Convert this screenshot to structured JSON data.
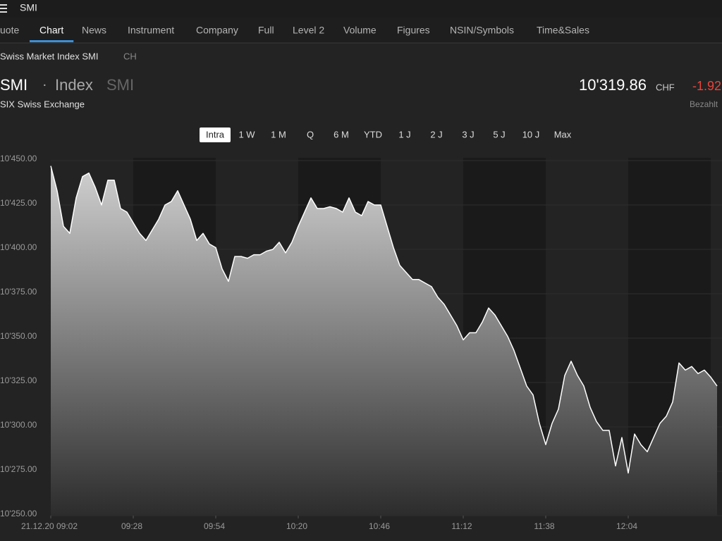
{
  "header": {
    "title": "SMI"
  },
  "tabs": {
    "items": [
      "uote",
      "Chart",
      "News",
      "Instrument",
      "Company",
      "Full",
      "Level 2",
      "Volume",
      "Figures",
      "NSIN/Symbols",
      "Time&Sales"
    ],
    "active": 1
  },
  "instrument": {
    "name": "Swiss Market Index SMI",
    "country": "CH",
    "symbol": "SMI",
    "separator": "·",
    "kind": "Index",
    "ticker": "SMI",
    "exchange": "SIX Swiss Exchange",
    "price": "10'319.86",
    "currency": "CHF",
    "change": "-1.92",
    "status": "Bezahlt"
  },
  "ranges": {
    "items": [
      "Intra",
      "1 W",
      "1 M",
      "Q",
      "6 M",
      "YTD",
      "1 J",
      "2 J",
      "3 J",
      "5 J",
      "10 J",
      "Max"
    ],
    "active": 0
  },
  "chart_data": {
    "type": "area",
    "color": "#ffffff",
    "x": [
      "09:02",
      "09:04",
      "09:06",
      "09:08",
      "09:10",
      "09:12",
      "09:14",
      "09:16",
      "09:18",
      "09:20",
      "09:22",
      "09:24",
      "09:26",
      "09:28",
      "09:30",
      "09:32",
      "09:34",
      "09:36",
      "09:38",
      "09:40",
      "09:42",
      "09:44",
      "09:46",
      "09:48",
      "09:50",
      "09:52",
      "09:54",
      "09:56",
      "09:58",
      "10:00",
      "10:02",
      "10:04",
      "10:06",
      "10:08",
      "10:10",
      "10:12",
      "10:14",
      "10:16",
      "10:18",
      "10:20",
      "10:22",
      "10:24",
      "10:26",
      "10:28",
      "10:30",
      "10:32",
      "10:34",
      "10:36",
      "10:38",
      "10:40",
      "10:42",
      "10:44",
      "10:46",
      "10:48",
      "10:50",
      "10:52",
      "10:54",
      "10:56",
      "10:58",
      "11:00",
      "11:02",
      "11:04",
      "11:06",
      "11:08",
      "11:10",
      "11:12",
      "11:14",
      "11:16",
      "11:18",
      "11:20",
      "11:22",
      "11:24",
      "11:26",
      "11:28",
      "11:30",
      "11:32",
      "11:34",
      "11:36",
      "11:38",
      "11:40",
      "11:42",
      "11:44",
      "11:46",
      "11:48",
      "11:50",
      "11:52",
      "11:54",
      "11:56",
      "11:58",
      "12:00",
      "12:02",
      "12:04",
      "12:06",
      "12:08",
      "12:10",
      "12:12",
      "12:14",
      "12:16",
      "12:18",
      "12:20",
      "12:22",
      "12:24",
      "12:26",
      "12:28",
      "12:30",
      "12:32"
    ],
    "values": [
      10447,
      10433,
      10413,
      10409,
      10429,
      10441,
      10443,
      10435,
      10425,
      10439,
      10439,
      10423,
      10421,
      10415,
      10409,
      10405,
      10411,
      10417,
      10425,
      10427,
      10433,
      10425,
      10417,
      10405,
      10409,
      10403,
      10401,
      10389,
      10382,
      10396,
      10396,
      10395,
      10397,
      10397,
      10399,
      10400,
      10404,
      10398,
      10404,
      10413,
      10421,
      10429,
      10423,
      10423,
      10424,
      10423,
      10421,
      10429,
      10421,
      10419,
      10427,
      10425,
      10425,
      10413,
      10401,
      10391,
      10387,
      10383,
      10383,
      10381,
      10379,
      10373,
      10369,
      10363,
      10357,
      10349,
      10353,
      10353,
      10359,
      10367,
      10363,
      10357,
      10351,
      10343,
      10333,
      10323,
      10318,
      10302,
      10290,
      10302,
      10310,
      10329,
      10337,
      10329,
      10323,
      10311,
      10303,
      10298,
      10298,
      10278,
      10294,
      10274,
      10296,
      10290,
      10286,
      10294,
      10302,
      10306,
      10314,
      10336,
      10332,
      10334,
      10330,
      10332,
      10328,
      10323
    ],
    "xticks": [
      {
        "value": "09:02",
        "label": "21.12.20 09:02"
      },
      "09:28",
      "09:54",
      "10:20",
      "10:46",
      "11:12",
      "11:38",
      "12:04"
    ],
    "ylim": [
      10250,
      10450
    ],
    "yticks": [
      {
        "value": 10250,
        "label": "10'250.00"
      },
      {
        "value": 10275,
        "label": "10'275.00"
      },
      {
        "value": 10300,
        "label": "10'300.00"
      },
      {
        "value": 10325,
        "label": "10'325.00"
      },
      {
        "value": 10350,
        "label": "10'350.00"
      },
      {
        "value": 10375,
        "label": "10'375.00"
      },
      {
        "value": 10400,
        "label": "10'400.00"
      },
      {
        "value": 10425,
        "label": "10'425.00"
      },
      {
        "value": 10450,
        "label": "10'450.00"
      }
    ]
  }
}
